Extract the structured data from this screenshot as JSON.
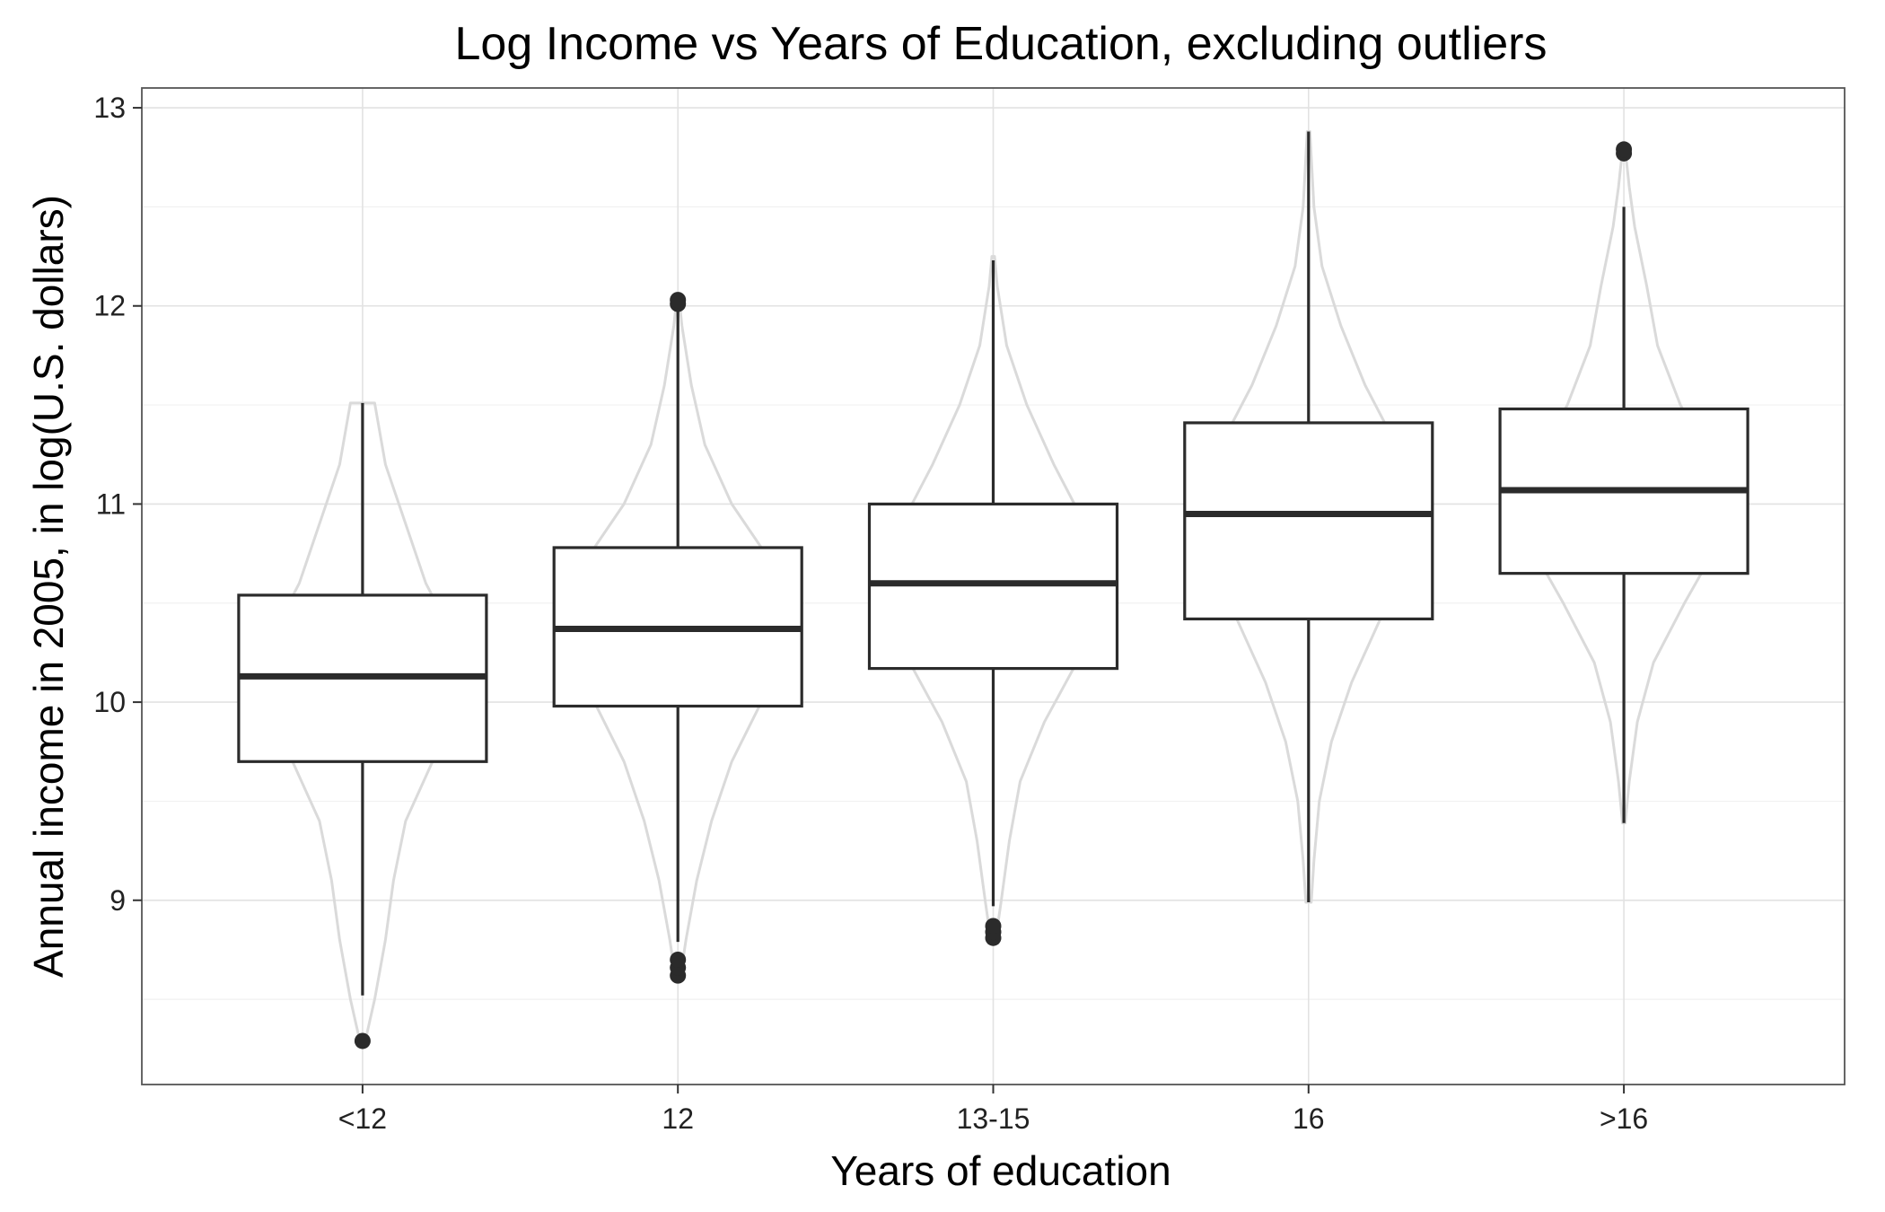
{
  "chart_data": {
    "type": "boxplot",
    "title": "Log Income vs Years of Education, excluding outliers",
    "xlabel": "Years of education",
    "ylabel": "Annual income in 2005, in log(U.S. dollars)",
    "ylim": [
      8.07,
      13.1
    ],
    "y_ticks": [
      9,
      10,
      11,
      12,
      13
    ],
    "y_tick_labels": [
      "9",
      "10",
      "11",
      "12",
      "13"
    ],
    "grid": true,
    "overlay": "violin",
    "colors": {
      "box": "#2b2b2b",
      "violin": "#dadada",
      "grid": "#e2e2e2",
      "background": "#ffffff"
    },
    "categories": [
      "<12",
      "12",
      "13-15",
      "16",
      ">16"
    ],
    "boxes": [
      {
        "category": "<12",
        "lower_whisker": 8.52,
        "q1": 9.7,
        "median": 10.13,
        "q3": 10.54,
        "upper_whisker": 11.51,
        "outliers": [
          8.29
        ]
      },
      {
        "category": "12",
        "lower_whisker": 8.79,
        "q1": 9.98,
        "median": 10.37,
        "q3": 10.78,
        "upper_whisker": 11.98,
        "outliers": [
          8.62,
          8.66,
          8.7,
          12.01,
          12.03
        ]
      },
      {
        "category": "13-15",
        "lower_whisker": 8.97,
        "q1": 10.17,
        "median": 10.6,
        "q3": 11.0,
        "upper_whisker": 12.23,
        "outliers": [
          8.81,
          8.84,
          8.87
        ]
      },
      {
        "category": "16",
        "lower_whisker": 8.99,
        "q1": 10.42,
        "median": 10.95,
        "q3": 11.41,
        "upper_whisker": 12.88,
        "outliers": []
      },
      {
        "category": ">16",
        "lower_whisker": 9.39,
        "q1": 10.65,
        "median": 11.07,
        "q3": 11.48,
        "upper_whisker": 12.5,
        "outliers": [
          12.77,
          12.79
        ]
      }
    ],
    "violins": [
      {
        "category": "<12",
        "ymin": 8.29,
        "ymax": 11.51,
        "profile": [
          [
            8.29,
            0.02
          ],
          [
            8.5,
            0.09
          ],
          [
            8.8,
            0.17
          ],
          [
            9.1,
            0.23
          ],
          [
            9.4,
            0.32
          ],
          [
            9.7,
            0.52
          ],
          [
            10.0,
            0.72
          ],
          [
            10.15,
            0.76
          ],
          [
            10.3,
            0.7
          ],
          [
            10.6,
            0.47
          ],
          [
            10.9,
            0.32
          ],
          [
            11.2,
            0.17
          ],
          [
            11.51,
            0.09
          ]
        ]
      },
      {
        "category": "12",
        "ymin": 8.62,
        "ymax": 12.03,
        "profile": [
          [
            8.62,
            0.02
          ],
          [
            8.8,
            0.06
          ],
          [
            9.1,
            0.14
          ],
          [
            9.4,
            0.25
          ],
          [
            9.7,
            0.4
          ],
          [
            10.0,
            0.62
          ],
          [
            10.3,
            0.78
          ],
          [
            10.5,
            0.8
          ],
          [
            10.7,
            0.7
          ],
          [
            11.0,
            0.4
          ],
          [
            11.3,
            0.2
          ],
          [
            11.6,
            0.1
          ],
          [
            11.9,
            0.03
          ],
          [
            12.03,
            0.01
          ]
        ]
      },
      {
        "category": "13-15",
        "ymin": 8.81,
        "ymax": 12.25,
        "profile": [
          [
            8.81,
            0.02
          ],
          [
            9.0,
            0.06
          ],
          [
            9.3,
            0.12
          ],
          [
            9.6,
            0.2
          ],
          [
            9.9,
            0.38
          ],
          [
            10.2,
            0.62
          ],
          [
            10.5,
            0.78
          ],
          [
            10.65,
            0.8
          ],
          [
            10.9,
            0.68
          ],
          [
            11.2,
            0.45
          ],
          [
            11.5,
            0.25
          ],
          [
            11.8,
            0.1
          ],
          [
            12.1,
            0.03
          ],
          [
            12.25,
            0.01
          ]
        ]
      },
      {
        "category": "16",
        "ymin": 8.99,
        "ymax": 12.88,
        "profile": [
          [
            8.99,
            0.02
          ],
          [
            9.2,
            0.04
          ],
          [
            9.5,
            0.08
          ],
          [
            9.8,
            0.17
          ],
          [
            10.1,
            0.32
          ],
          [
            10.4,
            0.52
          ],
          [
            10.7,
            0.72
          ],
          [
            11.0,
            0.78
          ],
          [
            11.3,
            0.65
          ],
          [
            11.6,
            0.42
          ],
          [
            11.9,
            0.24
          ],
          [
            12.2,
            0.1
          ],
          [
            12.5,
            0.04
          ],
          [
            12.88,
            0.01
          ]
        ]
      },
      {
        "category": ">16",
        "ymin": 9.39,
        "ymax": 12.79,
        "profile": [
          [
            9.39,
            0.01
          ],
          [
            9.6,
            0.04
          ],
          [
            9.9,
            0.1
          ],
          [
            10.2,
            0.22
          ],
          [
            10.5,
            0.45
          ],
          [
            10.8,
            0.7
          ],
          [
            11.0,
            0.78
          ],
          [
            11.2,
            0.68
          ],
          [
            11.5,
            0.42
          ],
          [
            11.8,
            0.25
          ],
          [
            12.1,
            0.17
          ],
          [
            12.4,
            0.08
          ],
          [
            12.6,
            0.04
          ],
          [
            12.79,
            0.01
          ]
        ]
      }
    ]
  }
}
